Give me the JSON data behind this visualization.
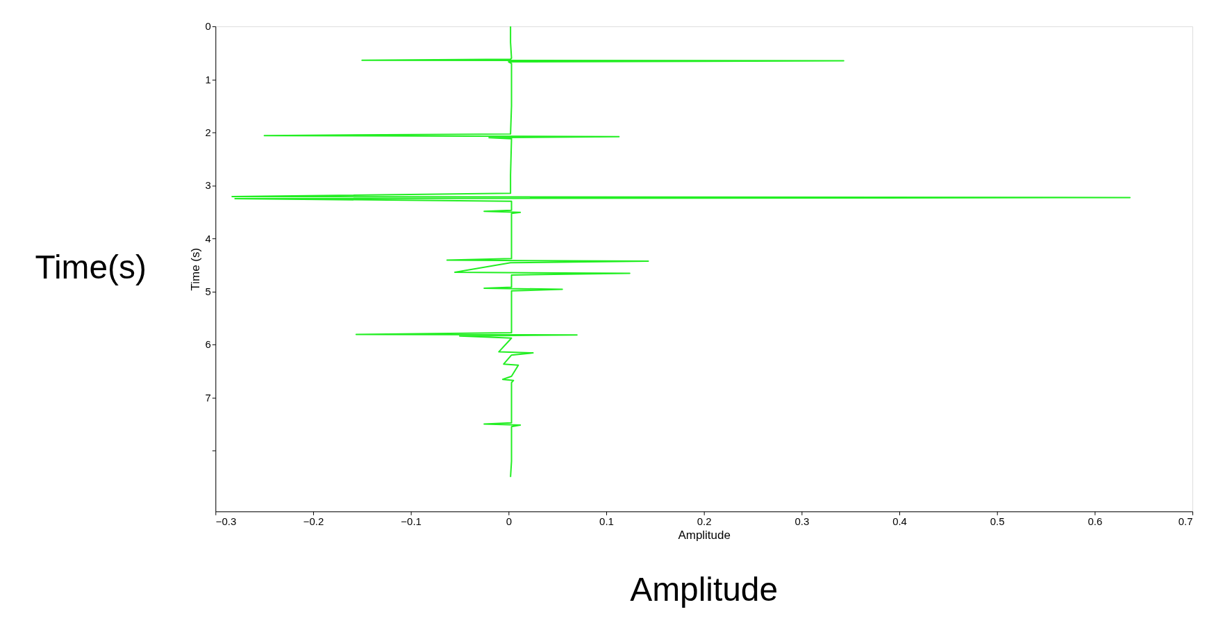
{
  "chart_data": {
    "type": "line",
    "xlabel": "Amplitude",
    "ylabel": "Time (s)",
    "annotations": [
      "Time(s)",
      "Amplitude"
    ],
    "xlim": [
      -0.3,
      0.7
    ],
    "xticks": [
      -0.3,
      -0.2,
      -0.1,
      0,
      0.1,
      0.2,
      0.3,
      0.4,
      0.5,
      0.6,
      0.7
    ],
    "ylim": [
      9.15,
      0
    ],
    "yticks": [
      0,
      1,
      2,
      3,
      4,
      5,
      6,
      7,
      {
        "value": 8,
        "label": null
      }
    ],
    "grid": false,
    "series": [
      {
        "color": "#22ee22",
        "x": [
          0.002,
          0.002,
          0.003,
          0.002,
          -0.15,
          0.343,
          0.0,
          0.003,
          0.003,
          0.002,
          -0.25,
          0.113,
          -0.02,
          0.003,
          0.002,
          0.002,
          -0.283,
          0.636,
          -0.28,
          0.003,
          0.003,
          -0.025,
          0.012,
          0.003,
          0.003,
          -0.063,
          0.143,
          0.002,
          -0.055,
          0.124,
          0.003,
          0.003,
          -0.025,
          0.055,
          0.003,
          0.003,
          -0.156,
          0.07,
          -0.05,
          0.003,
          -0.01,
          0.025,
          0.003,
          -0.005,
          0.01,
          0.003,
          -0.006,
          0.005,
          0.003,
          0.003,
          -0.025,
          0.012,
          0.003,
          0.003,
          0.002
        ],
        "values": [
          0,
          0.3,
          0.6,
          0.62,
          0.64,
          0.65,
          0.67,
          0.7,
          1.5,
          2.03,
          2.06,
          2.08,
          2.1,
          2.12,
          2.8,
          3.15,
          3.21,
          3.23,
          3.25,
          3.3,
          3.47,
          3.49,
          3.51,
          3.53,
          4.38,
          4.41,
          4.43,
          4.46,
          4.64,
          4.66,
          4.69,
          4.92,
          4.94,
          4.96,
          4.99,
          5.78,
          5.81,
          5.82,
          5.84,
          5.88,
          6.14,
          6.16,
          6.2,
          6.37,
          6.39,
          6.6,
          6.66,
          6.68,
          6.72,
          7.48,
          7.5,
          7.52,
          7.55,
          8.2,
          8.5
        ]
      }
    ]
  }
}
